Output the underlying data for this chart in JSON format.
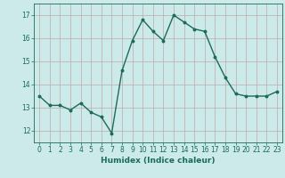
{
  "x": [
    0,
    1,
    2,
    3,
    4,
    5,
    6,
    7,
    8,
    9,
    10,
    11,
    12,
    13,
    14,
    15,
    16,
    17,
    18,
    19,
    20,
    21,
    22,
    23
  ],
  "y": [
    13.5,
    13.1,
    13.1,
    12.9,
    13.2,
    12.8,
    12.6,
    11.9,
    14.6,
    15.9,
    16.8,
    16.3,
    15.9,
    17.0,
    16.7,
    16.4,
    16.3,
    15.2,
    14.3,
    13.6,
    13.5,
    13.5,
    13.5,
    13.7
  ],
  "xlabel": "Humidex (Indice chaleur)",
  "ylim": [
    11.5,
    17.5
  ],
  "xlim": [
    -0.5,
    23.5
  ],
  "yticks": [
    12,
    13,
    14,
    15,
    16,
    17
  ],
  "xticks": [
    0,
    1,
    2,
    3,
    4,
    5,
    6,
    7,
    8,
    9,
    10,
    11,
    12,
    13,
    14,
    15,
    16,
    17,
    18,
    19,
    20,
    21,
    22,
    23
  ],
  "line_color": "#1a6b5a",
  "marker": "o",
  "marker_size": 1.8,
  "bg_color": "#cceaea",
  "grid_color": "#c0a8a8",
  "line_width": 1.0,
  "tick_fontsize": 5.5,
  "xlabel_fontsize": 6.5
}
